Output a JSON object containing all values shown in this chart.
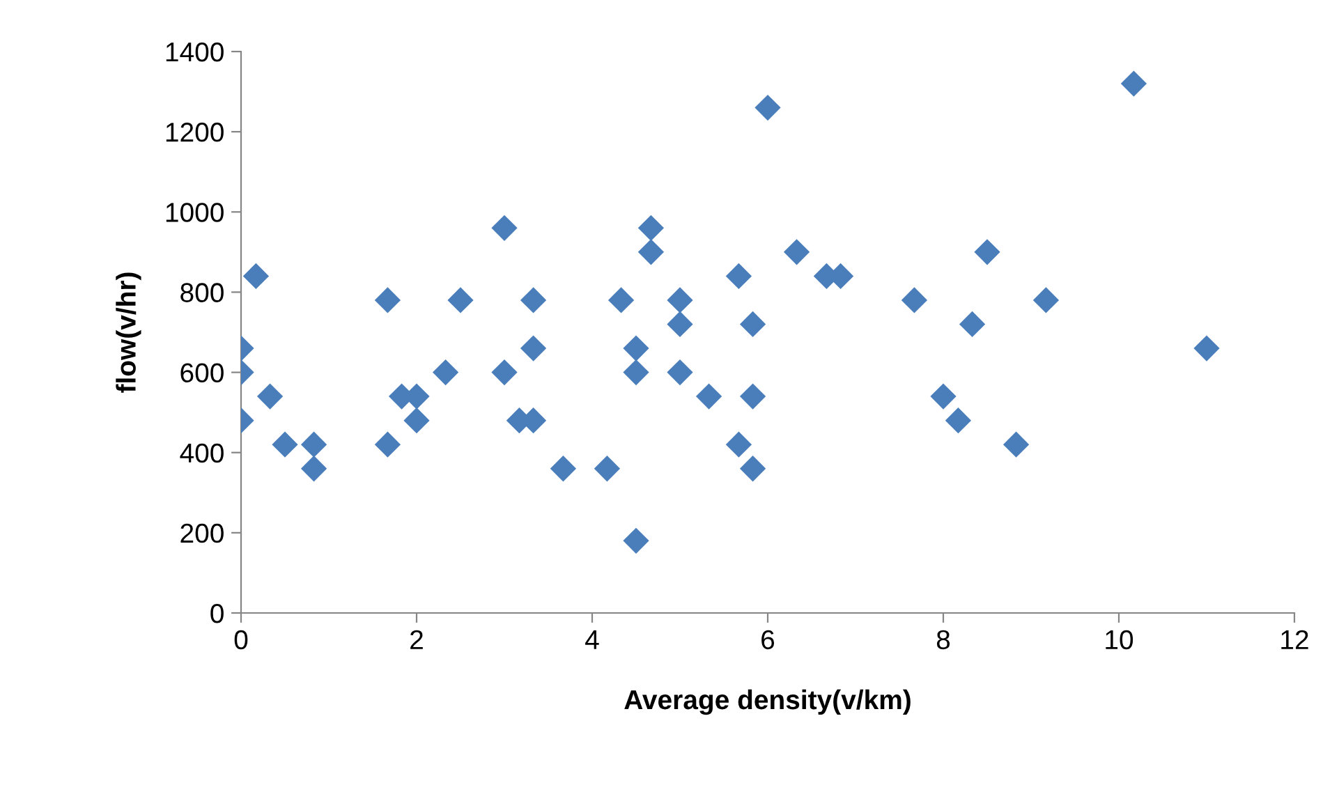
{
  "chart_data": {
    "type": "scatter",
    "xlabel": "Average density(v/km)",
    "ylabel": "flow(v/hr)",
    "x": [
      0,
      0,
      0,
      0.17,
      0.33,
      0.5,
      0.83,
      0.83,
      1.67,
      1.67,
      1.83,
      2,
      2,
      2.33,
      2.5,
      3,
      3,
      3.17,
      3.33,
      3.33,
      3.33,
      3.67,
      4.17,
      4.33,
      4.5,
      4.5,
      4.5,
      4.67,
      4.67,
      5,
      5,
      5,
      5.33,
      5.67,
      5.67,
      5.83,
      5.83,
      5.83,
      6,
      6.33,
      6.67,
      6.83,
      7.67,
      8,
      8.17,
      8.33,
      8.5,
      8.83,
      9.17,
      10.17,
      11
    ],
    "series": [
      {
        "color": "#4a7ebb",
        "values": [
          660,
          600,
          480,
          840,
          540,
          420,
          420,
          360,
          780,
          420,
          540,
          540,
          480,
          600,
          780,
          960,
          600,
          480,
          780,
          660,
          480,
          360,
          360,
          780,
          660,
          600,
          180,
          960,
          900,
          780,
          720,
          600,
          540,
          840,
          420,
          720,
          540,
          360,
          1260,
          900,
          840,
          840,
          780,
          540,
          480,
          720,
          900,
          420,
          780,
          1320,
          660
        ]
      }
    ],
    "xlim": [
      0,
      12
    ],
    "xticks": [
      0,
      2,
      4,
      6,
      8,
      10,
      12
    ],
    "ylim": [
      0,
      1400
    ],
    "yticks": [
      0,
      200,
      400,
      600,
      800,
      1000,
      1200,
      1400
    ],
    "marker": "diamond",
    "grid": false,
    "legend": false
  }
}
